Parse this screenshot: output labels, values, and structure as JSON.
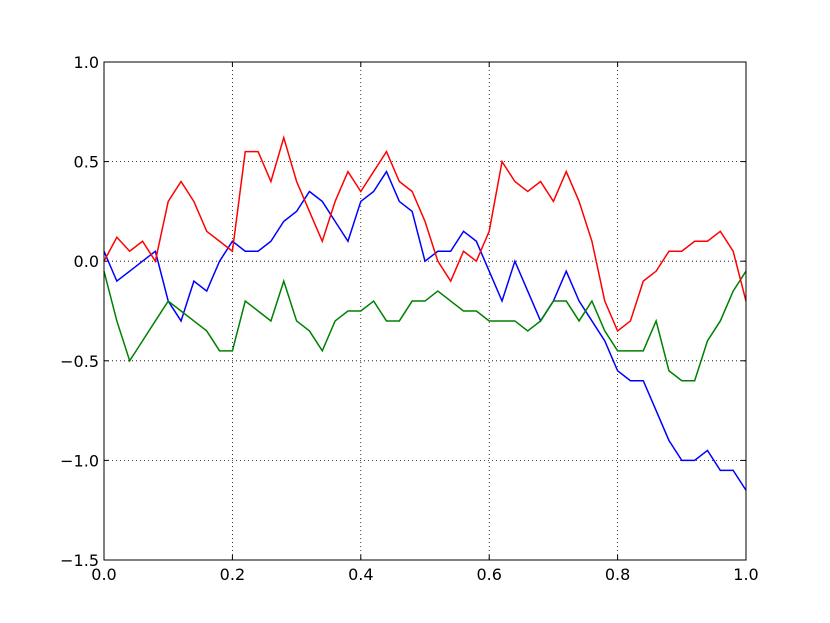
{
  "chart_data": {
    "type": "line",
    "x": [
      0,
      0.02,
      0.04,
      0.06,
      0.08,
      0.1,
      0.12,
      0.14,
      0.16,
      0.18,
      0.2,
      0.22,
      0.24,
      0.26,
      0.28,
      0.3,
      0.32,
      0.34,
      0.36,
      0.38,
      0.4,
      0.42,
      0.44,
      0.46,
      0.48,
      0.5,
      0.52,
      0.54,
      0.56,
      0.58,
      0.6,
      0.62,
      0.64,
      0.66,
      0.68,
      0.7,
      0.72,
      0.74,
      0.76,
      0.78,
      0.8,
      0.82,
      0.84,
      0.86,
      0.88,
      0.9,
      0.92,
      0.94,
      0.96,
      0.98,
      1.0
    ],
    "series": [
      {
        "color": "#0000ff",
        "values": [
          0.05,
          -0.1,
          -0.05,
          0.0,
          0.05,
          -0.2,
          -0.3,
          -0.1,
          -0.15,
          0.0,
          0.1,
          0.05,
          0.05,
          0.1,
          0.2,
          0.25,
          0.35,
          0.3,
          0.2,
          0.1,
          0.3,
          0.35,
          0.45,
          0.3,
          0.25,
          0.0,
          0.05,
          0.05,
          0.15,
          0.1,
          -0.05,
          -0.2,
          0.0,
          -0.15,
          -0.3,
          -0.2,
          -0.05,
          -0.2,
          -0.3,
          -0.4,
          -0.55,
          -0.6,
          -0.6,
          -0.75,
          -0.9,
          -1.0,
          -1.0,
          -0.95,
          -1.05,
          -1.05,
          -1.15
        ]
      },
      {
        "color": "#008000",
        "values": [
          -0.05,
          -0.3,
          -0.5,
          -0.4,
          -0.3,
          -0.2,
          -0.25,
          -0.3,
          -0.35,
          -0.45,
          -0.45,
          -0.2,
          -0.25,
          -0.3,
          -0.1,
          -0.3,
          -0.35,
          -0.45,
          -0.3,
          -0.25,
          -0.25,
          -0.2,
          -0.3,
          -0.3,
          -0.2,
          -0.2,
          -0.15,
          -0.2,
          -0.25,
          -0.25,
          -0.3,
          -0.3,
          -0.3,
          -0.35,
          -0.3,
          -0.2,
          -0.2,
          -0.3,
          -0.2,
          -0.35,
          -0.45,
          -0.45,
          -0.45,
          -0.3,
          -0.55,
          -0.6,
          -0.6,
          -0.4,
          -0.3,
          -0.15,
          -0.05
        ]
      },
      {
        "color": "#ff0000",
        "values": [
          0.0,
          0.12,
          0.05,
          0.1,
          0.0,
          0.3,
          0.4,
          0.3,
          0.15,
          0.1,
          0.05,
          0.55,
          0.55,
          0.4,
          0.62,
          0.4,
          0.25,
          0.1,
          0.3,
          0.45,
          0.35,
          0.45,
          0.55,
          0.4,
          0.35,
          0.2,
          0.0,
          -0.1,
          0.05,
          0.0,
          0.15,
          0.5,
          0.4,
          0.35,
          0.4,
          0.3,
          0.45,
          0.3,
          0.1,
          -0.2,
          -0.35,
          -0.3,
          -0.1,
          -0.05,
          0.05,
          0.05,
          0.1,
          0.1,
          0.15,
          0.05,
          -0.2
        ]
      }
    ],
    "xlim": [
      0,
      1
    ],
    "xticks": [
      {
        "value": 0,
        "label": "0.0"
      },
      0.2,
      0.4,
      0.6,
      0.8,
      {
        "value": 1,
        "label": "1.0"
      }
    ],
    "ylim": [
      -1.5,
      1
    ],
    "yticks": [
      {
        "value": -1.5,
        "label": "−1.5"
      },
      {
        "value": -1,
        "label": "−1.0"
      },
      {
        "value": -0.5,
        "label": "−0.5"
      },
      {
        "value": 0,
        "label": "0.0"
      },
      0.5,
      {
        "value": 1,
        "label": "1.0"
      }
    ],
    "grid": true
  }
}
